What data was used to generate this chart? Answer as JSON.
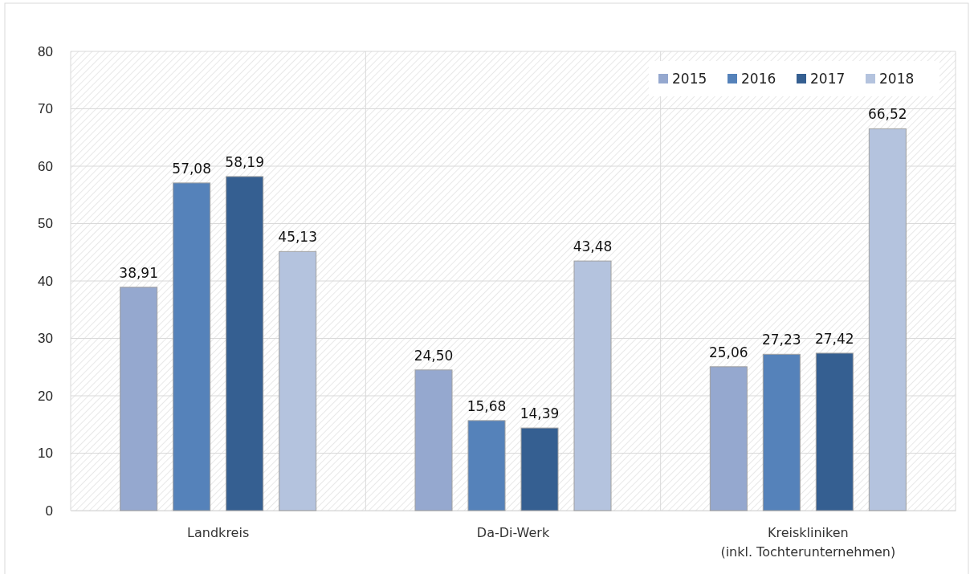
{
  "chart_data": {
    "type": "bar",
    "categories": [
      "Landkreis",
      "Da-Di-Werk",
      "Kreiskliniken\n(inkl. Tochterunternehmen)"
    ],
    "series": [
      {
        "name": "2015",
        "color": "#95a8cf",
        "values": [
          38.91,
          24.5,
          25.06
        ],
        "value_labels": [
          "38,91",
          "24,50",
          "25,06"
        ]
      },
      {
        "name": "2016",
        "color": "#5582ba",
        "values": [
          57.08,
          15.68,
          27.23
        ],
        "value_labels": [
          "57,08",
          "15,68",
          "27,23"
        ]
      },
      {
        "name": "2017",
        "color": "#355f91",
        "values": [
          58.19,
          14.39,
          27.42
        ],
        "value_labels": [
          "58,19",
          "14,39",
          "27,42"
        ]
      },
      {
        "name": "2018",
        "color": "#b4c3de",
        "values": [
          45.13,
          43.48,
          66.52
        ],
        "value_labels": [
          "45,13",
          "43,48",
          "66,52"
        ]
      }
    ],
    "ylim": [
      0,
      80
    ],
    "yticks": [
      0,
      10,
      20,
      30,
      40,
      50,
      60,
      70,
      80
    ],
    "grid": true,
    "legend": "top right"
  }
}
